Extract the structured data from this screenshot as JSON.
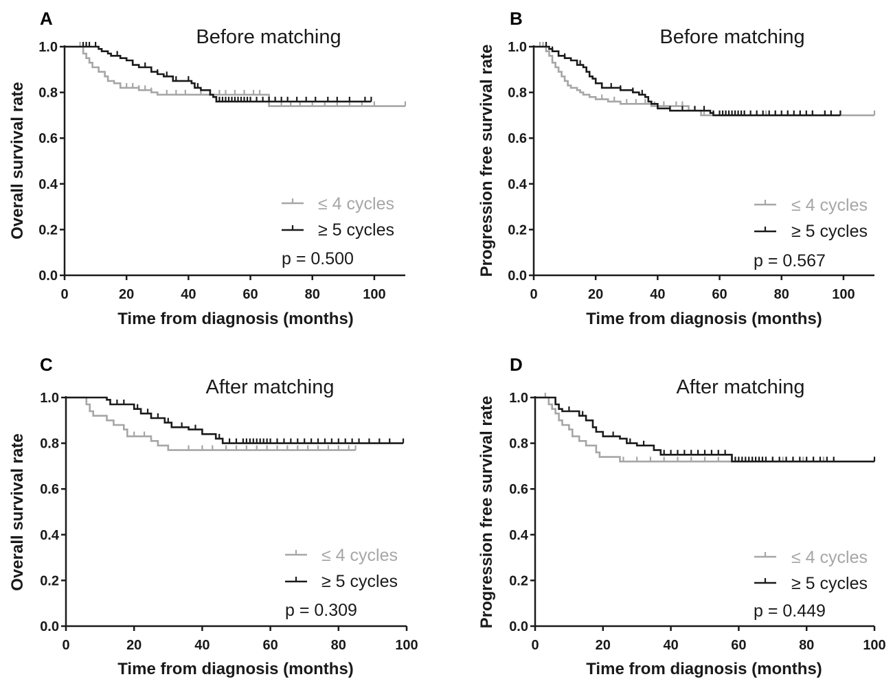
{
  "colors": {
    "grey": "#a6a6a6",
    "black": "#1a1a1a"
  },
  "chart_data": [
    {
      "type": "line",
      "panel": "A",
      "title": "Before matching",
      "xlabel": "Time from diagnosis (months)",
      "ylabel": "Overall survival rate",
      "xlim": [
        0,
        110
      ],
      "ylim": [
        0,
        1
      ],
      "xticks": [
        "0",
        "20",
        "40",
        "60",
        "80",
        "100"
      ],
      "yticks": [
        "0.0",
        "0.2",
        "0.4",
        "0.6",
        "0.8",
        "1.0"
      ],
      "legend": "bottom-right",
      "p_value": "p = 0.500",
      "series": [
        {
          "name": "≤ 4 cycles",
          "color": "#a6a6a6",
          "steps": [
            [
              0,
              1.0
            ],
            [
              6,
              0.97
            ],
            [
              7,
              0.95
            ],
            [
              8,
              0.93
            ],
            [
              9,
              0.91
            ],
            [
              11,
              0.89
            ],
            [
              13,
              0.87
            ],
            [
              14,
              0.85
            ],
            [
              16,
              0.84
            ],
            [
              18,
              0.82
            ],
            [
              24,
              0.81
            ],
            [
              28,
              0.8
            ],
            [
              30,
              0.79
            ],
            [
              66,
              0.74
            ],
            [
              110,
              0.74
            ]
          ],
          "censors": [
            5,
            7,
            20,
            22,
            24,
            26,
            28,
            33,
            36,
            39,
            44,
            47,
            50,
            52,
            55,
            58,
            61,
            63,
            66,
            70,
            73,
            76,
            80,
            84,
            88,
            92,
            96,
            100,
            110
          ]
        },
        {
          "name": "≥ 5 cycles",
          "color": "#1a1a1a",
          "steps": [
            [
              0,
              1.0
            ],
            [
              11,
              0.99
            ],
            [
              12,
              0.98
            ],
            [
              14,
              0.97
            ],
            [
              15,
              0.96
            ],
            [
              18,
              0.95
            ],
            [
              20,
              0.94
            ],
            [
              22,
              0.92
            ],
            [
              24,
              0.91
            ],
            [
              28,
              0.89
            ],
            [
              30,
              0.88
            ],
            [
              32,
              0.87
            ],
            [
              35,
              0.85
            ],
            [
              41,
              0.84
            ],
            [
              42,
              0.82
            ],
            [
              44,
              0.81
            ],
            [
              47,
              0.79
            ],
            [
              48,
              0.78
            ],
            [
              49,
              0.76
            ],
            [
              99,
              0.76
            ]
          ],
          "censors": [
            6,
            7,
            8,
            10,
            17,
            22,
            26,
            30,
            33,
            36,
            40,
            43,
            50,
            51,
            52,
            53,
            54,
            55,
            56,
            57,
            58,
            59,
            60,
            62,
            64,
            66,
            68,
            70,
            72,
            75,
            78,
            81,
            85,
            88,
            92,
            97,
            99
          ]
        }
      ]
    },
    {
      "type": "line",
      "panel": "B",
      "title": "Before matching",
      "xlabel": "Time from diagnosis (months)",
      "ylabel": "Progression free survival rate",
      "xlim": [
        0,
        110
      ],
      "ylim": [
        0,
        1
      ],
      "xticks": [
        "0",
        "20",
        "40",
        "60",
        "80",
        "100"
      ],
      "yticks": [
        "0.0",
        "0.2",
        "0.4",
        "0.6",
        "0.8",
        "1.0"
      ],
      "legend": "bottom-right",
      "p_value": "p = 0.567",
      "series": [
        {
          "name": "≤ 4 cycles",
          "color": "#a6a6a6",
          "steps": [
            [
              0,
              1.0
            ],
            [
              4,
              0.98
            ],
            [
              5,
              0.96
            ],
            [
              6,
              0.93
            ],
            [
              7,
              0.91
            ],
            [
              8,
              0.89
            ],
            [
              9,
              0.87
            ],
            [
              10,
              0.85
            ],
            [
              11,
              0.83
            ],
            [
              12,
              0.82
            ],
            [
              14,
              0.81
            ],
            [
              15,
              0.8
            ],
            [
              16,
              0.79
            ],
            [
              18,
              0.78
            ],
            [
              20,
              0.77
            ],
            [
              24,
              0.76
            ],
            [
              28,
              0.75
            ],
            [
              38,
              0.74
            ],
            [
              50,
              0.72
            ],
            [
              54,
              0.7
            ],
            [
              110,
              0.7
            ]
          ],
          "censors": [
            2,
            3,
            4,
            22,
            26,
            30,
            33,
            36,
            39,
            42,
            46,
            48,
            52,
            55,
            58,
            62,
            65,
            68,
            72,
            75,
            78,
            82,
            86,
            90,
            94,
            99,
            110
          ]
        },
        {
          "name": "≥ 5 cycles",
          "color": "#1a1a1a",
          "steps": [
            [
              0,
              1.0
            ],
            [
              5,
              0.99
            ],
            [
              6,
              0.98
            ],
            [
              8,
              0.96
            ],
            [
              10,
              0.95
            ],
            [
              12,
              0.94
            ],
            [
              14,
              0.92
            ],
            [
              16,
              0.91
            ],
            [
              17,
              0.89
            ],
            [
              18,
              0.87
            ],
            [
              19,
              0.86
            ],
            [
              20,
              0.84
            ],
            [
              22,
              0.82
            ],
            [
              28,
              0.81
            ],
            [
              32,
              0.8
            ],
            [
              34,
              0.79
            ],
            [
              36,
              0.78
            ],
            [
              37,
              0.76
            ],
            [
              38,
              0.75
            ],
            [
              40,
              0.73
            ],
            [
              44,
              0.72
            ],
            [
              57,
              0.71
            ],
            [
              58,
              0.7
            ],
            [
              99,
              0.7
            ]
          ],
          "censors": [
            4,
            6,
            10,
            15,
            22,
            25,
            28,
            32,
            35,
            37,
            40,
            44,
            48,
            52,
            55,
            58,
            60,
            61,
            62,
            63,
            64,
            65,
            66,
            67,
            68,
            70,
            72,
            74,
            76,
            78,
            80,
            82,
            84,
            86,
            88,
            90,
            94,
            96,
            99
          ]
        }
      ]
    },
    {
      "type": "line",
      "panel": "C",
      "title": "After matching",
      "xlabel": "Time from diagnosis (months)",
      "ylabel": "Overall survival rate",
      "xlim": [
        0,
        100
      ],
      "ylim": [
        0,
        1
      ],
      "xticks": [
        "0",
        "20",
        "40",
        "60",
        "80",
        "100"
      ],
      "yticks": [
        "0.0",
        "0.2",
        "0.4",
        "0.6",
        "0.8",
        "1.0"
      ],
      "legend": "bottom-right",
      "p_value": "p = 0.309",
      "series": [
        {
          "name": "≤ 4 cycles",
          "color": "#a6a6a6",
          "steps": [
            [
              0,
              1.0
            ],
            [
              6,
              0.97
            ],
            [
              7,
              0.94
            ],
            [
              8,
              0.92
            ],
            [
              12,
              0.9
            ],
            [
              14,
              0.88
            ],
            [
              17,
              0.86
            ],
            [
              18,
              0.83
            ],
            [
              25,
              0.81
            ],
            [
              27,
              0.79
            ],
            [
              30,
              0.77
            ],
            [
              85,
              0.77
            ]
          ],
          "censors": [
            6,
            7,
            20,
            23,
            27,
            30,
            36,
            40,
            43,
            47,
            50,
            53,
            56,
            59,
            62,
            65,
            68,
            71,
            74,
            77,
            80,
            83,
            85
          ]
        },
        {
          "name": "≥ 5 cycles",
          "color": "#1a1a1a",
          "steps": [
            [
              0,
              1.0
            ],
            [
              12,
              0.99
            ],
            [
              13,
              0.97
            ],
            [
              20,
              0.95
            ],
            [
              22,
              0.93
            ],
            [
              25,
              0.91
            ],
            [
              29,
              0.89
            ],
            [
              31,
              0.87
            ],
            [
              36,
              0.86
            ],
            [
              40,
              0.84
            ],
            [
              44,
              0.82
            ],
            [
              46,
              0.8
            ],
            [
              99,
              0.8
            ]
          ],
          "censors": [
            15,
            17,
            21,
            24,
            27,
            30,
            34,
            38,
            45,
            48,
            50,
            52,
            53,
            54,
            55,
            56,
            57,
            58,
            59,
            60,
            62,
            64,
            66,
            68,
            70,
            72,
            74,
            76,
            78,
            80,
            82,
            84,
            86,
            89,
            92,
            95,
            99
          ]
        }
      ]
    },
    {
      "type": "line",
      "panel": "D",
      "title": "After matching",
      "xlabel": "Time from diagnosis (months)",
      "ylabel": "Progression free survival rate",
      "xlim": [
        0,
        100
      ],
      "ylim": [
        0,
        1
      ],
      "xticks": [
        "0",
        "20",
        "40",
        "60",
        "80",
        "100"
      ],
      "yticks": [
        "0.0",
        "0.2",
        "0.4",
        "0.6",
        "0.8",
        "1.0"
      ],
      "legend": "bottom-right",
      "p_value": "p = 0.449",
      "series": [
        {
          "name": "≤ 4 cycles",
          "color": "#a6a6a6",
          "steps": [
            [
              0,
              1.0
            ],
            [
              4,
              0.97
            ],
            [
              5,
              0.95
            ],
            [
              6,
              0.93
            ],
            [
              7,
              0.9
            ],
            [
              8,
              0.88
            ],
            [
              10,
              0.86
            ],
            [
              11,
              0.83
            ],
            [
              13,
              0.81
            ],
            [
              15,
              0.79
            ],
            [
              18,
              0.76
            ],
            [
              19,
              0.74
            ],
            [
              25,
              0.72
            ],
            [
              85,
              0.72
            ]
          ],
          "censors": [
            3,
            4,
            26,
            30,
            34,
            38,
            42,
            46,
            50,
            54,
            58,
            61,
            64,
            67,
            70,
            73,
            76,
            79,
            82,
            85
          ]
        },
        {
          "name": "≥ 5 cycles",
          "color": "#1a1a1a",
          "steps": [
            [
              0,
              1.0
            ],
            [
              6,
              0.97
            ],
            [
              7,
              0.95
            ],
            [
              8,
              0.94
            ],
            [
              13,
              0.92
            ],
            [
              15,
              0.9
            ],
            [
              17,
              0.87
            ],
            [
              18,
              0.85
            ],
            [
              20,
              0.83
            ],
            [
              25,
              0.82
            ],
            [
              27,
              0.8
            ],
            [
              30,
              0.79
            ],
            [
              35,
              0.77
            ],
            [
              37,
              0.75
            ],
            [
              58,
              0.72
            ],
            [
              100,
              0.72
            ]
          ],
          "censors": [
            6,
            10,
            14,
            23,
            28,
            32,
            38,
            40,
            42,
            44,
            46,
            48,
            50,
            52,
            54,
            56,
            58,
            59,
            60,
            61,
            62,
            63,
            64,
            65,
            66,
            67,
            68,
            70,
            72,
            74,
            76,
            78,
            80,
            82,
            84,
            86,
            88,
            100
          ]
        }
      ]
    }
  ]
}
